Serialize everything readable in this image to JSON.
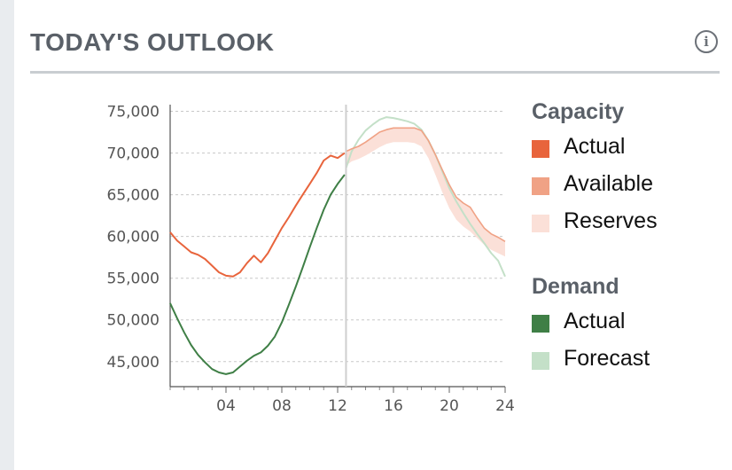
{
  "header": {
    "title": "TODAY'S OUTLOOK",
    "info_icon": "info-icon",
    "info_glyph": "i"
  },
  "legend": {
    "capacity_heading": "Capacity",
    "capacity_items": [
      {
        "label": "Actual",
        "color": "#e8643c"
      },
      {
        "label": "Available",
        "color": "#f0a285"
      },
      {
        "label": "Reserves",
        "color": "#fbe0d8"
      }
    ],
    "demand_heading": "Demand",
    "demand_items": [
      {
        "label": "Actual",
        "color": "#3f7f46"
      },
      {
        "label": "Forecast",
        "color": "#c4e0c8"
      }
    ]
  },
  "chart_data": {
    "type": "line",
    "title": "",
    "xlabel": "",
    "ylabel": "",
    "xlim": [
      0,
      24
    ],
    "ylim": [
      42000,
      75800
    ],
    "grid": true,
    "x_ticks": [
      4,
      8,
      12,
      16,
      20,
      24
    ],
    "x_tick_labels": [
      "04",
      "08",
      "12",
      "16",
      "20",
      "24"
    ],
    "y_ticks": [
      45000,
      50000,
      55000,
      60000,
      65000,
      70000,
      75000
    ],
    "y_tick_labels": [
      "45,000",
      "50,000",
      "55,000",
      "60,000",
      "65,000",
      "70,000",
      "75,000"
    ],
    "current_hour": 12.6,
    "series": [
      {
        "name": "Actual",
        "group": "Capacity",
        "color": "#e8643c",
        "x": [
          0,
          0.5,
          1,
          1.5,
          2,
          2.5,
          3,
          3.5,
          4,
          4.5,
          5,
          5.5,
          6,
          6.5,
          7,
          7.5,
          8,
          8.5,
          9,
          9.5,
          10,
          10.5,
          11,
          11.5,
          12,
          12.5
        ],
        "values": [
          60500,
          59500,
          58800,
          58100,
          57800,
          57300,
          56500,
          55700,
          55300,
          55200,
          55700,
          56800,
          57700,
          56900,
          58000,
          59500,
          61000,
          62300,
          63700,
          65000,
          66300,
          67600,
          69100,
          69700,
          69400,
          70000
        ]
      },
      {
        "name": "Actual",
        "group": "Demand",
        "color": "#3f7f46",
        "x": [
          0,
          0.5,
          1,
          1.5,
          2,
          2.5,
          3,
          3.5,
          4,
          4.5,
          5,
          5.5,
          6,
          6.5,
          7,
          7.5,
          8,
          8.5,
          9,
          9.5,
          10,
          10.5,
          11,
          11.5,
          12,
          12.5
        ],
        "values": [
          52000,
          50200,
          48500,
          47000,
          45800,
          44900,
          44100,
          43700,
          43500,
          43700,
          44400,
          45100,
          45700,
          46100,
          46900,
          48000,
          49700,
          51800,
          54000,
          56300,
          58700,
          61000,
          63200,
          65000,
          66300,
          67400
        ]
      },
      {
        "name": "Forecast",
        "group": "Demand",
        "color": "#c4e0c8",
        "x": [
          12.6,
          13,
          13.5,
          14,
          14.5,
          15,
          15.5,
          16,
          16.5,
          17,
          17.5,
          18,
          18.5,
          19,
          19.5,
          20,
          20.5,
          21,
          21.5,
          22,
          22.5,
          23,
          23.5,
          24
        ],
        "values": [
          68200,
          70200,
          71600,
          72700,
          73400,
          74000,
          74300,
          74200,
          74000,
          73800,
          73500,
          72800,
          71500,
          69800,
          67800,
          65800,
          64200,
          62800,
          61500,
          60300,
          59200,
          58000,
          57100,
          55200
        ]
      },
      {
        "name": "Available",
        "group": "Capacity",
        "color": "#f0a285",
        "x": [
          12.6,
          13,
          13.5,
          14,
          14.5,
          15,
          15.5,
          16,
          16.5,
          17,
          17.5,
          18,
          18.5,
          19,
          19.5,
          20,
          20.5,
          21,
          21.5,
          22,
          22.5,
          23,
          23.5,
          24
        ],
        "values": [
          70200,
          70500,
          70800,
          71300,
          71900,
          72500,
          72800,
          73000,
          73000,
          73000,
          73000,
          72700,
          71500,
          69800,
          68000,
          66200,
          64700,
          64000,
          63500,
          62200,
          61000,
          60300,
          59900,
          59400
        ]
      },
      {
        "name": "Reserves",
        "group": "Capacity",
        "color": "#fbe0d8",
        "x": [
          12.6,
          13,
          13.5,
          14,
          14.5,
          15,
          15.5,
          16,
          16.5,
          17,
          17.5,
          18,
          18.5,
          19,
          19.5,
          20,
          20.5,
          21,
          21.5,
          22,
          22.5,
          23,
          23.5,
          24
        ],
        "values": [
          68500,
          69000,
          69300,
          69700,
          70200,
          70700,
          71100,
          71300,
          71300,
          71300,
          71200,
          70800,
          69400,
          67400,
          65300,
          63400,
          62000,
          61200,
          60600,
          59800,
          59000,
          58400,
          58000,
          57600
        ]
      }
    ]
  }
}
